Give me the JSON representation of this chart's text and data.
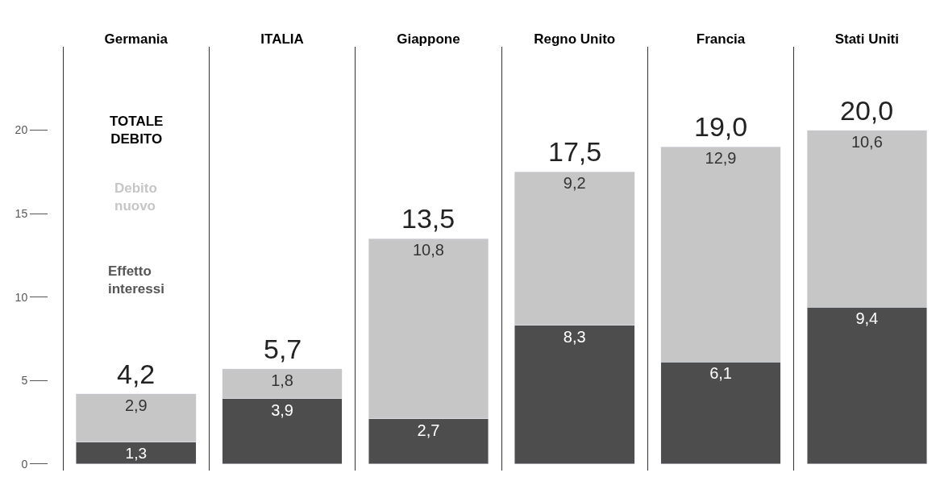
{
  "chart_data": {
    "type": "bar",
    "stacked": true,
    "categories": [
      "Germania",
      "ITALIA",
      "Giappone",
      "Regno Unito",
      "Francia",
      "Stati Uniti"
    ],
    "series": [
      {
        "name": "Effetto interessi",
        "color": "#4d4d4d",
        "values": [
          1.3,
          3.9,
          2.7,
          8.3,
          6.1,
          9.4
        ],
        "value_labels": [
          "1,3",
          "3,9",
          "2,7",
          "8,3",
          "6,1",
          "9,4"
        ]
      },
      {
        "name": "Debito nuovo",
        "color": "#c6c6c6",
        "values": [
          2.9,
          1.8,
          10.8,
          9.2,
          12.9,
          10.6
        ],
        "value_labels": [
          "2,9",
          "1,8",
          "10,8",
          "9,2",
          "12,9",
          "10,6"
        ]
      }
    ],
    "totals": [
      "4,2",
      "5,7",
      "13,5",
      "17,5",
      "19,0",
      "20,0"
    ],
    "annotations": [
      "TOTALE DEBITO"
    ],
    "ylim": [
      -0.4,
      25
    ],
    "yticks": [
      0,
      5,
      10,
      15,
      20
    ],
    "grid": "x"
  }
}
